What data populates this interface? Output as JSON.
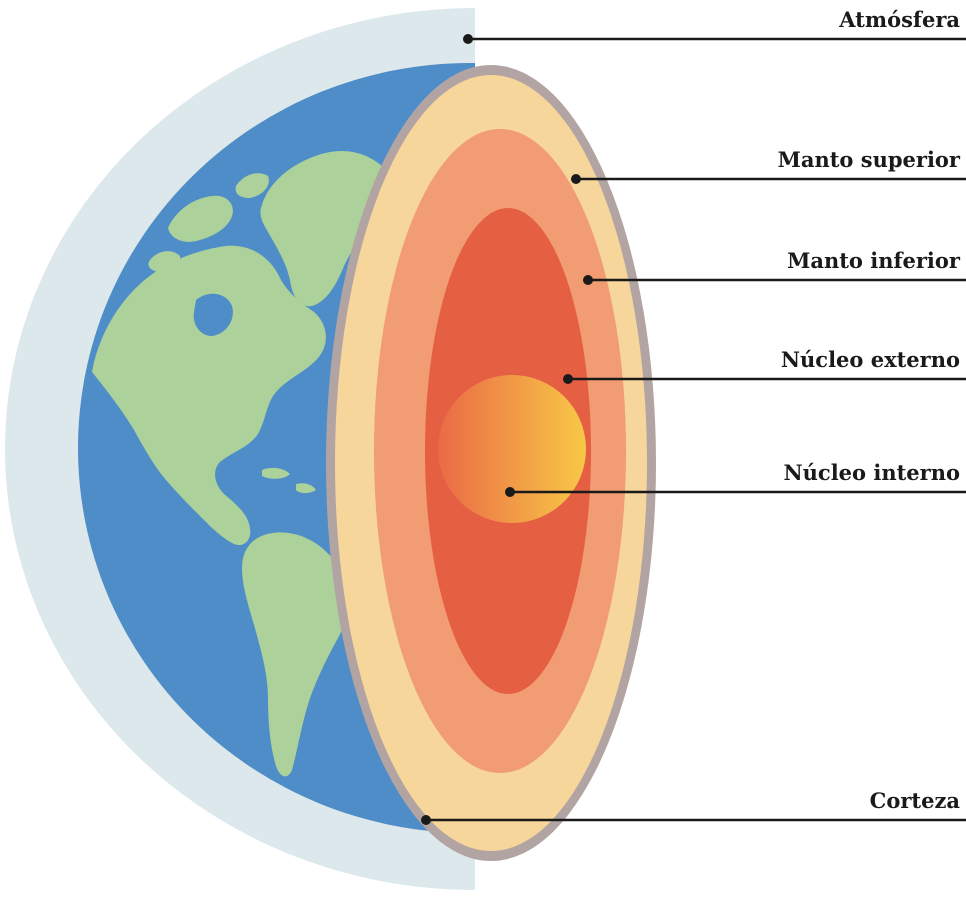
{
  "diagram": {
    "labels": {
      "atmosfera": "Atmósfera",
      "manto_superior": "Manto superior",
      "manto_inferior": "Manto inferior",
      "nucleo_externo": "Núcleo externo",
      "nucleo_interno": "Núcleo interno",
      "corteza": "Corteza"
    },
    "colors": {
      "atmosphere": "#dde8ec",
      "ocean": "#4f8dc8",
      "land": "#acd19b",
      "crust_rim": "#b3a4a4",
      "upper_mantle": "#f6d69a",
      "lower_mantle": "#f19c73",
      "outer_core": "#e55f43",
      "inner_core_left": "#ea6a45",
      "inner_core_right": "#f8c847",
      "leader_line": "#1a1a1a"
    }
  }
}
